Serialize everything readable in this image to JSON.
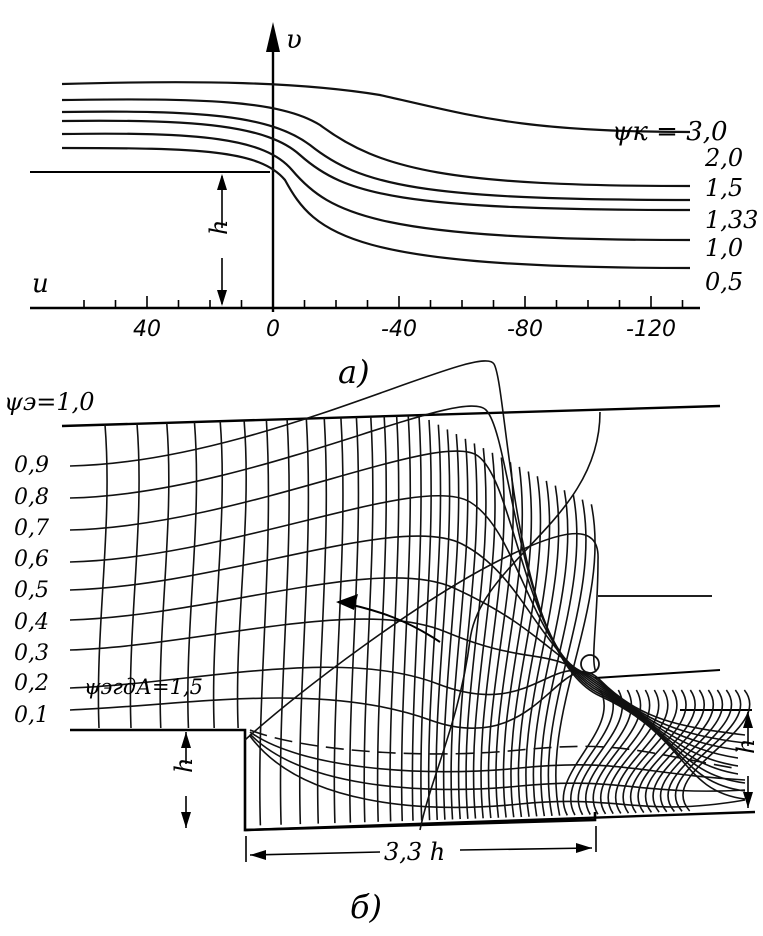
{
  "figure_a": {
    "caption": "а)",
    "axis_v_label": "υ",
    "axis_u_label": "u",
    "h_label": "h",
    "ticks": [
      {
        "label": "40",
        "value": 40
      },
      {
        "label": "0",
        "value": 0
      },
      {
        "label": "-40",
        "value": -40
      },
      {
        "label": "-80",
        "value": -80
      },
      {
        "label": "-120",
        "value": -120
      }
    ],
    "curve_labels": [
      {
        "label": "ψк = 3,0",
        "psi": 3.0
      },
      {
        "label": "2,0",
        "psi": 2.0
      },
      {
        "label": "1,5",
        "psi": 1.5
      },
      {
        "label": "1,33",
        "psi": 1.33
      },
      {
        "label": "1,0",
        "psi": 1.0
      },
      {
        "label": "0,5",
        "psi": 0.5
      }
    ]
  },
  "figure_b": {
    "caption": "б)",
    "top_label": "ψэ=1,0",
    "streamline_labels": [
      "0,9",
      "0,8",
      "0,7",
      "0,6",
      "0,5",
      "0,4",
      "0,3",
      "0,2",
      "0,1"
    ],
    "dashed_label": "ψэгдА=1,5",
    "h_left_label": "h",
    "h_right_label": "h",
    "dimension_label": "3,3 h"
  }
}
